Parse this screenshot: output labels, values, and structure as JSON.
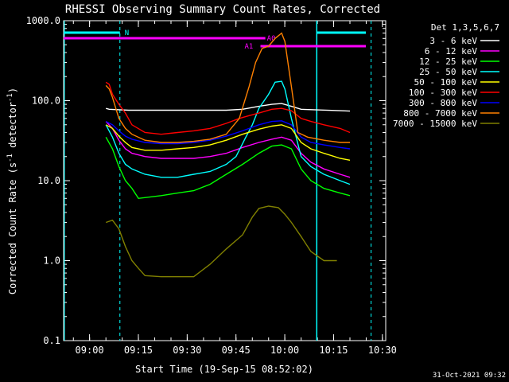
{
  "chart_data": {
    "type": "line",
    "title": "RHESSI Observing Summary Count Rates, Corrected",
    "xlabel": "Start Time (19-Sep-15 08:52:02)",
    "ylabel_main": "Corrected Count Rate (s",
    "ylabel_sup": "-1",
    "ylabel_rest": " detector",
    "ylabel_sup2": "-1",
    "ylabel_end": ")",
    "yscale": "log",
    "ylim": [
      0.1,
      1000
    ],
    "xlim_minutes": [
      0,
      99
    ],
    "y_ticks": [
      "0.1",
      "1.0",
      "10.0",
      "100.0",
      "1000.0"
    ],
    "x_ticks": [
      {
        "label": "09:00",
        "t": 7.97
      },
      {
        "label": "09:15",
        "t": 22.97
      },
      {
        "label": "09:30",
        "t": 37.97
      },
      {
        "label": "09:45",
        "t": 52.97
      },
      {
        "label": "10:00",
        "t": 67.97
      },
      {
        "label": "10:15",
        "t": 82.97
      },
      {
        "label": "10:30",
        "t": 97.97
      }
    ],
    "legend_title": "Det 1,3,5,6,7",
    "legend_position": "right",
    "timestamp": "31-Oct-2021 09:32",
    "markers": {
      "N": "N",
      "A1": "A1",
      "A0": "A0"
    },
    "series": [
      {
        "name": "3 - 6 keV",
        "color": "#ffffff",
        "points": [
          [
            13,
            80
          ],
          [
            14,
            78
          ],
          [
            20,
            76
          ],
          [
            30,
            76
          ],
          [
            40,
            76
          ],
          [
            50,
            76
          ],
          [
            55,
            78
          ],
          [
            60,
            85
          ],
          [
            64,
            90
          ],
          [
            67,
            92
          ],
          [
            70,
            85
          ],
          [
            73,
            78
          ],
          [
            85,
            75
          ],
          [
            88,
            74
          ]
        ]
      },
      {
        "name": "6 - 12 keV",
        "color": "#ff00ff",
        "points": [
          [
            13,
            55
          ],
          [
            15,
            45
          ],
          [
            17,
            32
          ],
          [
            19,
            25
          ],
          [
            21,
            22
          ],
          [
            25,
            20
          ],
          [
            30,
            19
          ],
          [
            35,
            19
          ],
          [
            40,
            19
          ],
          [
            45,
            20
          ],
          [
            50,
            22
          ],
          [
            55,
            26
          ],
          [
            60,
            30
          ],
          [
            64,
            33
          ],
          [
            67,
            35
          ],
          [
            70,
            32
          ],
          [
            73,
            22
          ],
          [
            76,
            17
          ],
          [
            80,
            14
          ],
          [
            85,
            12
          ],
          [
            88,
            11
          ]
        ]
      },
      {
        "name": "12 - 25 keV",
        "color": "#00ff00",
        "points": [
          [
            13,
            35
          ],
          [
            15,
            25
          ],
          [
            17,
            15
          ],
          [
            19,
            10
          ],
          [
            21,
            8
          ],
          [
            23,
            6
          ],
          [
            30,
            6.5
          ],
          [
            35,
            7
          ],
          [
            40,
            7.5
          ],
          [
            45,
            9
          ],
          [
            50,
            12
          ],
          [
            55,
            16
          ],
          [
            60,
            22
          ],
          [
            64,
            27
          ],
          [
            67,
            28
          ],
          [
            70,
            25
          ],
          [
            73,
            14
          ],
          [
            76,
            10
          ],
          [
            80,
            8
          ],
          [
            85,
            7
          ],
          [
            88,
            6.5
          ]
        ]
      },
      {
        "name": "25 - 50 keV",
        "color": "#00ffff",
        "points": [
          [
            13,
            50
          ],
          [
            15,
            35
          ],
          [
            17,
            22
          ],
          [
            19,
            16
          ],
          [
            21,
            14
          ],
          [
            25,
            12
          ],
          [
            30,
            11
          ],
          [
            35,
            11
          ],
          [
            40,
            12
          ],
          [
            45,
            13
          ],
          [
            50,
            16
          ],
          [
            53,
            20
          ],
          [
            56,
            35
          ],
          [
            58,
            50
          ],
          [
            60,
            80
          ],
          [
            63,
            120
          ],
          [
            65,
            170
          ],
          [
            67,
            175
          ],
          [
            68,
            140
          ],
          [
            70,
            60
          ],
          [
            73,
            20
          ],
          [
            76,
            15
          ],
          [
            80,
            12
          ],
          [
            85,
            10
          ],
          [
            88,
            9
          ]
        ]
      },
      {
        "name": "50 - 100 keV",
        "color": "#ffff00",
        "points": [
          [
            13,
            50
          ],
          [
            15,
            45
          ],
          [
            17,
            36
          ],
          [
            19,
            30
          ],
          [
            21,
            26
          ],
          [
            25,
            24
          ],
          [
            30,
            24
          ],
          [
            35,
            25
          ],
          [
            40,
            26
          ],
          [
            45,
            28
          ],
          [
            50,
            32
          ],
          [
            55,
            38
          ],
          [
            60,
            44
          ],
          [
            64,
            48
          ],
          [
            67,
            50
          ],
          [
            70,
            45
          ],
          [
            73,
            30
          ],
          [
            76,
            25
          ],
          [
            80,
            22
          ],
          [
            85,
            19
          ],
          [
            88,
            18
          ]
        ]
      },
      {
        "name": "100 - 300 keV",
        "color": "#ff0000",
        "points": [
          [
            13,
            170
          ],
          [
            14,
            160
          ],
          [
            15,
            120
          ],
          [
            17,
            90
          ],
          [
            19,
            70
          ],
          [
            21,
            50
          ],
          [
            25,
            40
          ],
          [
            30,
            38
          ],
          [
            35,
            40
          ],
          [
            40,
            42
          ],
          [
            45,
            45
          ],
          [
            50,
            52
          ],
          [
            54,
            60
          ],
          [
            57,
            65
          ],
          [
            60,
            70
          ],
          [
            64,
            78
          ],
          [
            67,
            80
          ],
          [
            70,
            75
          ],
          [
            73,
            60
          ],
          [
            76,
            55
          ],
          [
            80,
            50
          ],
          [
            85,
            45
          ],
          [
            88,
            40
          ]
        ]
      },
      {
        "name": "300 - 800 keV",
        "color": "#0000ff",
        "points": [
          [
            13,
            55
          ],
          [
            15,
            50
          ],
          [
            17,
            42
          ],
          [
            19,
            36
          ],
          [
            21,
            33
          ],
          [
            25,
            30
          ],
          [
            30,
            29
          ],
          [
            35,
            29
          ],
          [
            40,
            30
          ],
          [
            45,
            32
          ],
          [
            50,
            36
          ],
          [
            55,
            42
          ],
          [
            60,
            50
          ],
          [
            64,
            55
          ],
          [
            67,
            56
          ],
          [
            70,
            50
          ],
          [
            73,
            35
          ],
          [
            76,
            30
          ],
          [
            80,
            28
          ],
          [
            85,
            26
          ],
          [
            88,
            25
          ]
        ]
      },
      {
        "name": "800 - 7000 keV",
        "color": "#ff8000",
        "points": [
          [
            13,
            155
          ],
          [
            14,
            140
          ],
          [
            15,
            110
          ],
          [
            17,
            60
          ],
          [
            19,
            45
          ],
          [
            21,
            38
          ],
          [
            25,
            32
          ],
          [
            30,
            30
          ],
          [
            35,
            30
          ],
          [
            40,
            31
          ],
          [
            45,
            33
          ],
          [
            50,
            38
          ],
          [
            54,
            60
          ],
          [
            57,
            150
          ],
          [
            59,
            300
          ],
          [
            61,
            450
          ],
          [
            63,
            480
          ],
          [
            65,
            600
          ],
          [
            67,
            700
          ],
          [
            68,
            550
          ],
          [
            70,
            150
          ],
          [
            72,
            40
          ],
          [
            75,
            35
          ],
          [
            80,
            32
          ],
          [
            85,
            30
          ],
          [
            88,
            30
          ]
        ]
      },
      {
        "name": "7000 - 15000 keV",
        "color": "#808000",
        "points": [
          [
            13,
            3.0
          ],
          [
            15,
            3.2
          ],
          [
            17,
            2.5
          ],
          [
            19,
            1.5
          ],
          [
            21,
            1.0
          ],
          [
            23,
            0.8
          ],
          [
            25,
            0.65
          ],
          [
            30,
            0.63
          ],
          [
            35,
            0.63
          ],
          [
            40,
            0.63
          ],
          [
            45,
            0.9
          ],
          [
            50,
            1.4
          ],
          [
            55,
            2.1
          ],
          [
            58,
            3.5
          ],
          [
            60,
            4.5
          ],
          [
            63,
            4.8
          ],
          [
            66,
            4.6
          ],
          [
            68,
            3.8
          ],
          [
            70,
            3.0
          ],
          [
            73,
            2.0
          ],
          [
            76,
            1.3
          ],
          [
            80,
            1.0
          ],
          [
            84,
            1.0
          ]
        ]
      }
    ]
  }
}
